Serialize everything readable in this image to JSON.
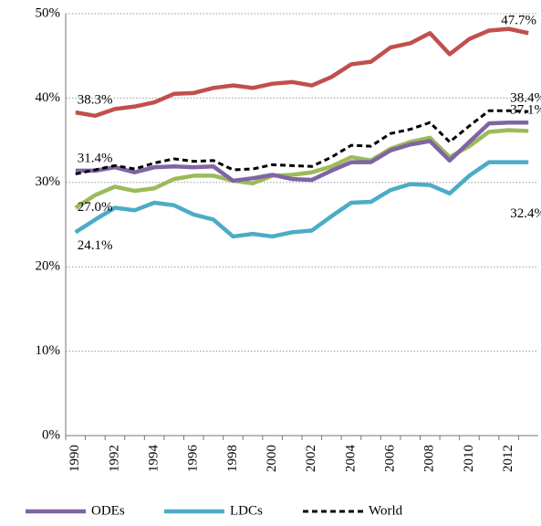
{
  "chart_data": {
    "type": "line",
    "categories": [
      "1990",
      null,
      "1992",
      null,
      "1994",
      null,
      "1996",
      null,
      "1998",
      null,
      "2000",
      null,
      "2002",
      null,
      "2004",
      null,
      "2006",
      null,
      "2008",
      null,
      "2010",
      null,
      "2012",
      null
    ],
    "ylim": [
      0,
      50
    ],
    "yticks": [
      {
        "value": 0,
        "label": "0%"
      },
      {
        "value": 10,
        "label": "10%"
      },
      {
        "value": 20,
        "label": "20%"
      },
      {
        "value": 30,
        "label": "30%"
      },
      {
        "value": 40,
        "label": "40%"
      },
      {
        "value": 50,
        "label": "50%"
      }
    ],
    "grid": true,
    "legend": "bottom",
    "series": [
      {
        "color": "#c0504d",
        "dash": false,
        "values": [
          38.3,
          37.9,
          38.7,
          39.0,
          39.5,
          40.5,
          40.6,
          41.2,
          41.5,
          41.2,
          41.7,
          41.9,
          41.5,
          42.5,
          44.0,
          44.3,
          46.0,
          46.5,
          47.7,
          45.2,
          47.0,
          48.0,
          48.2,
          47.7
        ],
        "value_labels": [
          "38.3%",
          null,
          null,
          null,
          null,
          null,
          null,
          null,
          null,
          null,
          null,
          null,
          null,
          null,
          null,
          null,
          null,
          null,
          null,
          null,
          null,
          null,
          null,
          "47.7%"
        ]
      },
      {
        "color": "#9bbb59",
        "dash": false,
        "values": [
          27.0,
          28.5,
          29.5,
          29.0,
          29.3,
          30.4,
          30.8,
          30.8,
          30.2,
          29.9,
          30.8,
          30.9,
          31.2,
          31.9,
          33.0,
          32.6,
          34.0,
          34.8,
          35.3,
          33.0,
          34.3,
          36.0,
          36.2,
          36.1
        ],
        "value_labels": [
          "27.0%",
          null,
          null,
          null,
          null,
          null,
          null,
          null,
          null,
          null,
          null,
          null,
          null,
          null,
          null,
          null,
          null,
          null,
          null,
          null,
          null,
          null,
          null,
          null
        ]
      },
      {
        "name": "ODEs",
        "color": "#8064a2",
        "dash": false,
        "values": [
          31.4,
          31.4,
          31.8,
          31.2,
          31.8,
          31.9,
          31.8,
          31.9,
          30.2,
          30.5,
          30.9,
          30.4,
          30.3,
          31.4,
          32.4,
          32.4,
          33.8,
          34.5,
          34.9,
          32.6,
          34.8,
          37.0,
          37.1,
          37.1
        ],
        "value_labels": [
          "31.4%",
          null,
          null,
          null,
          null,
          null,
          null,
          null,
          null,
          null,
          null,
          null,
          null,
          null,
          null,
          null,
          null,
          null,
          null,
          null,
          null,
          null,
          null,
          "37.1%"
        ]
      },
      {
        "name": "LDCs",
        "color": "#4bacc6",
        "dash": false,
        "values": [
          24.1,
          25.6,
          27.0,
          26.7,
          27.6,
          27.3,
          26.2,
          25.6,
          23.6,
          23.9,
          23.6,
          24.1,
          24.3,
          26.0,
          27.6,
          27.7,
          29.1,
          29.8,
          29.7,
          28.7,
          30.8,
          32.4,
          32.4,
          32.4
        ],
        "value_labels": [
          "24.1%",
          null,
          null,
          null,
          null,
          null,
          null,
          null,
          null,
          null,
          null,
          null,
          null,
          null,
          null,
          null,
          null,
          null,
          null,
          null,
          null,
          null,
          null,
          "32.4%"
        ]
      },
      {
        "name": "World",
        "color": "#000000",
        "dash": true,
        "values": [
          31.0,
          31.5,
          32.0,
          31.6,
          32.3,
          32.8,
          32.5,
          32.6,
          31.5,
          31.6,
          32.1,
          32.0,
          31.9,
          33.0,
          34.4,
          34.3,
          35.8,
          36.3,
          37.1,
          34.8,
          36.7,
          38.5,
          38.5,
          38.4
        ],
        "value_labels": [
          null,
          null,
          null,
          null,
          null,
          null,
          null,
          null,
          null,
          null,
          null,
          null,
          null,
          null,
          null,
          null,
          null,
          null,
          null,
          null,
          null,
          null,
          null,
          "38.4%"
        ]
      }
    ]
  }
}
